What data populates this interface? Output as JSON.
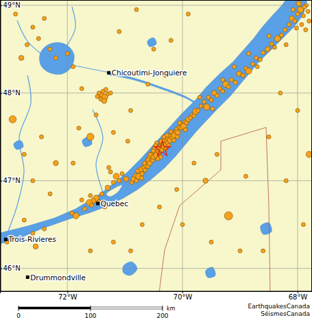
{
  "chart_data": {
    "type": "scatter",
    "xlim": [
      -73.17,
      -67.75
    ],
    "ylim": [
      45.74,
      49.06
    ],
    "xticks": [
      {
        "value": -72,
        "label": "72°W"
      },
      {
        "value": -70,
        "label": "70°W"
      },
      {
        "value": -68,
        "label": "68°W"
      }
    ],
    "yticks": [
      {
        "value": 46,
        "label": "46°N"
      },
      {
        "value": 47,
        "label": "47°N"
      },
      {
        "value": 48,
        "label": "48°N"
      },
      {
        "value": 49,
        "label": "49°N"
      }
    ],
    "grid": true,
    "color": "#f7a21b",
    "x": [
      -70.88,
      -70.85,
      -70.8,
      -70.82,
      -70.76,
      -70.74,
      -70.7,
      -70.72,
      -70.68,
      -70.65,
      -70.63,
      -70.6,
      -70.62,
      -70.57,
      -70.55,
      -70.58,
      -70.52,
      -70.5,
      -70.53,
      -70.48,
      -70.46,
      -70.45,
      -70.42,
      -70.44,
      -70.4,
      -70.38,
      -70.36,
      -70.35,
      -70.33,
      -70.31,
      -70.3,
      -70.28,
      -70.26,
      -70.25,
      -70.22,
      -70.21,
      -70.18,
      -70.17,
      -70.14,
      -70.12,
      -70.1,
      -70.08,
      -70.06,
      -70.03,
      -70.01,
      -69.98,
      -69.96,
      -69.93,
      -69.9,
      -69.86,
      -69.83,
      -69.8,
      -69.77,
      -69.73,
      -70.4,
      -70.34,
      -70.29,
      -70.49,
      -70.56,
      -70.24,
      -70.2,
      -70.38,
      -70.6,
      -70.66,
      -70.45,
      -70.32,
      -70.15,
      -70.43,
      -70.27,
      -70.37,
      -70.51,
      -70.47,
      -70.71,
      -70.78,
      -70.09,
      -70.05,
      -69.95,
      -69.68,
      -69.62,
      -69.58,
      -69.55,
      -69.5,
      -69.45,
      -69.4,
      -69.35,
      -69.3,
      -69.25,
      -69.2,
      -69.15,
      -69.08,
      -69.02,
      -68.95,
      -68.9,
      -68.85,
      -68.78,
      -68.72,
      -68.65,
      -68.6,
      -68.52,
      -68.45,
      -68.4,
      -68.35,
      -68.28,
      -68.22,
      -68.15,
      -68.1,
      -68.05,
      -68.0,
      -67.95,
      -67.9,
      -67.85,
      -67.82,
      -67.88,
      -67.98,
      -68.08,
      -67.8,
      -67.93,
      -68.02,
      -67.86,
      -69.48,
      -69.1,
      -68.7,
      -68.5,
      -69.3,
      -68.85,
      -68.2,
      -69.7,
      -71.5,
      -71.55,
      -71.6,
      -71.45,
      -71.62,
      -71.58,
      -71.4,
      -71.3,
      -71.2,
      -71.15,
      -71.1,
      -71.05,
      -70.98,
      -71.25,
      -71.35,
      -71.7,
      -71.85,
      -71.92,
      -71.75,
      -71.28,
      -72.95,
      -72.6,
      -72.4,
      -72.55,
      -73.05,
      -71.45,
      -71.4,
      -71.38,
      -71.35,
      -71.42,
      -71.3,
      -71.48,
      -71.33,
      -71.36,
      -71.25,
      -72.7,
      -72.5,
      -72.3,
      -72.2,
      -72.8,
      -72.0,
      -72.6,
      -71.9,
      -72.95,
      -72.75,
      -72.6,
      -72.45,
      -72.2,
      -72.9,
      -72.4,
      -71.8,
      -71.9,
      -72.3,
      -72.75,
      -71.6,
      -71.5,
      -71.75,
      -71.2,
      -70.9,
      -70.6,
      -70.5,
      -70.2,
      -69.9,
      -70.8,
      -71.1,
      -70.3,
      -70.95,
      -70.7,
      -70.4,
      -70.1,
      -69.8,
      -69.6,
      -69.4,
      -69.2,
      -68.9,
      -68.5,
      -68.2,
      -67.9,
      -67.8,
      -68.6,
      -69.5,
      -70.9,
      -71.2,
      -71.6,
      -68.3,
      -68.0,
      -69.0,
      -70.0
    ],
    "y": [
      46.98,
      47.02,
      47.0,
      47.06,
      47.05,
      47.1,
      47.08,
      47.13,
      47.15,
      47.12,
      47.18,
      47.16,
      47.22,
      47.2,
      47.25,
      47.27,
      47.23,
      47.28,
      47.31,
      47.32,
      47.29,
      47.35,
      47.33,
      47.38,
      47.37,
      47.4,
      47.35,
      47.42,
      47.39,
      47.44,
      47.41,
      47.46,
      47.43,
      47.48,
      47.46,
      47.51,
      47.49,
      47.54,
      47.52,
      47.56,
      47.59,
      47.55,
      47.61,
      47.6,
      47.64,
      47.62,
      47.67,
      47.66,
      47.7,
      47.72,
      47.75,
      47.74,
      47.79,
      47.8,
      47.3,
      47.46,
      47.36,
      47.37,
      47.3,
      47.4,
      47.56,
      47.27,
      47.24,
      47.2,
      47.43,
      47.5,
      47.46,
      47.25,
      47.52,
      47.45,
      47.34,
      47.4,
      47.03,
      47.11,
      47.5,
      47.66,
      47.58,
      47.85,
      47.9,
      47.84,
      47.95,
      47.92,
      48.0,
      47.97,
      48.05,
      48.02,
      48.1,
      48.07,
      48.15,
      48.12,
      48.22,
      48.2,
      48.28,
      48.25,
      48.33,
      48.4,
      48.38,
      48.46,
      48.5,
      48.56,
      48.52,
      48.62,
      48.66,
      48.72,
      48.78,
      48.85,
      48.82,
      48.9,
      48.95,
      48.88,
      49.0,
      48.93,
      48.98,
      49.02,
      48.95,
      48.82,
      48.78,
      48.74,
      48.72,
      47.82,
      48.3,
      48.3,
      48.65,
      48.15,
      48.45,
      48.55,
      47.95,
      46.8,
      46.77,
      46.83,
      46.76,
      46.75,
      46.72,
      46.85,
      46.92,
      46.98,
      47.05,
      47.0,
      47.08,
      47.02,
      47.1,
      46.7,
      46.68,
      46.6,
      46.63,
      46.78,
      47.15,
      46.35,
      46.4,
      46.45,
      46.25,
      46.3,
      48.0,
      47.97,
      48.02,
      47.95,
      47.93,
      47.99,
      47.96,
      48.04,
      47.91,
      48.0,
      48.55,
      48.62,
      48.5,
      48.4,
      48.4,
      48.45,
      48.75,
      48.3,
      47.7,
      47.3,
      47.0,
      47.5,
      47.2,
      48.9,
      48.85,
      47.6,
      47.2,
      46.85,
      46.55,
      47.5,
      47.75,
      48.05,
      47.55,
      47.8,
      48.1,
      48.5,
      48.6,
      48.9,
      48.95,
      48.7,
      48.2,
      47.45,
      46.5,
      46.7,
      46.9,
      47.2,
      47.0,
      47.3,
      46.6,
      47.05,
      47.5,
      47.0,
      46.5,
      47.3,
      46.2,
      46.3,
      46.2,
      46.3,
      46.2,
      48.0,
      47.8,
      46.2,
      46.5
    ],
    "sizes": [
      2,
      2.5,
      2,
      2,
      3,
      2,
      2,
      2.5,
      2,
      2,
      3,
      2,
      2,
      2.5,
      2,
      2,
      2,
      3,
      2,
      2,
      2.5,
      2,
      2,
      2,
      3,
      2,
      2,
      2.5,
      2,
      2,
      2,
      3,
      2,
      2,
      2.5,
      2,
      2,
      2,
      3,
      2,
      2,
      2.5,
      2,
      2,
      2,
      3,
      2,
      2,
      2.5,
      2,
      2,
      2,
      3,
      2,
      2,
      2,
      2,
      2,
      2,
      2,
      2,
      2,
      2,
      2,
      2,
      2,
      2,
      2,
      2,
      2,
      2,
      2,
      2,
      2,
      2,
      2,
      2,
      2,
      2,
      3,
      2,
      2,
      2.5,
      2,
      2,
      2,
      3,
      2,
      2,
      2,
      2.5,
      2,
      2,
      3,
      2,
      2,
      2,
      2,
      2.5,
      2,
      2,
      3,
      2,
      2,
      2,
      2.5,
      2,
      2,
      3,
      2,
      2,
      2,
      2,
      2.5,
      2,
      2,
      2,
      2,
      2,
      2,
      2,
      2,
      2,
      2,
      2,
      2,
      2,
      3,
      2.5,
      2,
      2,
      3,
      2,
      2,
      2.5,
      2,
      3,
      2,
      2,
      2.5,
      2,
      2,
      2,
      3,
      2,
      2,
      2,
      2,
      2,
      2,
      2.5,
      2,
      2,
      2.5,
      2,
      3,
      2,
      2,
      2,
      2,
      2.5,
      2,
      2,
      2,
      2,
      2,
      2.5,
      2,
      2,
      2,
      3.5,
      2,
      2,
      2,
      2.5,
      2,
      2,
      2,
      2,
      2,
      2,
      3.5,
      2,
      2,
      2,
      2,
      2,
      2,
      2,
      2,
      2,
      2,
      2,
      2,
      2,
      2,
      2,
      2,
      2.5,
      2,
      4,
      2,
      2,
      2,
      2,
      3,
      2,
      2,
      2,
      2,
      2,
      2,
      2,
      2,
      2
    ],
    "highlight": {
      "x": -70.35,
      "y": 47.36
    },
    "annotations": [
      {
        "text": "Chicoutimi-Jonquiere",
        "x": -71.28,
        "y": 48.23
      },
      {
        "text": "Quebec",
        "x": -71.47,
        "y": 46.74
      },
      {
        "text": "Trois-Rivieres",
        "x": -73.07,
        "y": 46.33
      },
      {
        "text": "Drummondville",
        "x": -72.69,
        "y": 45.9
      }
    ],
    "scale_bar": {
      "ticks": [
        0,
        100,
        200
      ],
      "unit": "km"
    },
    "credits": [
      "EarthquakesCanada",
      "SéismesCanada"
    ]
  }
}
